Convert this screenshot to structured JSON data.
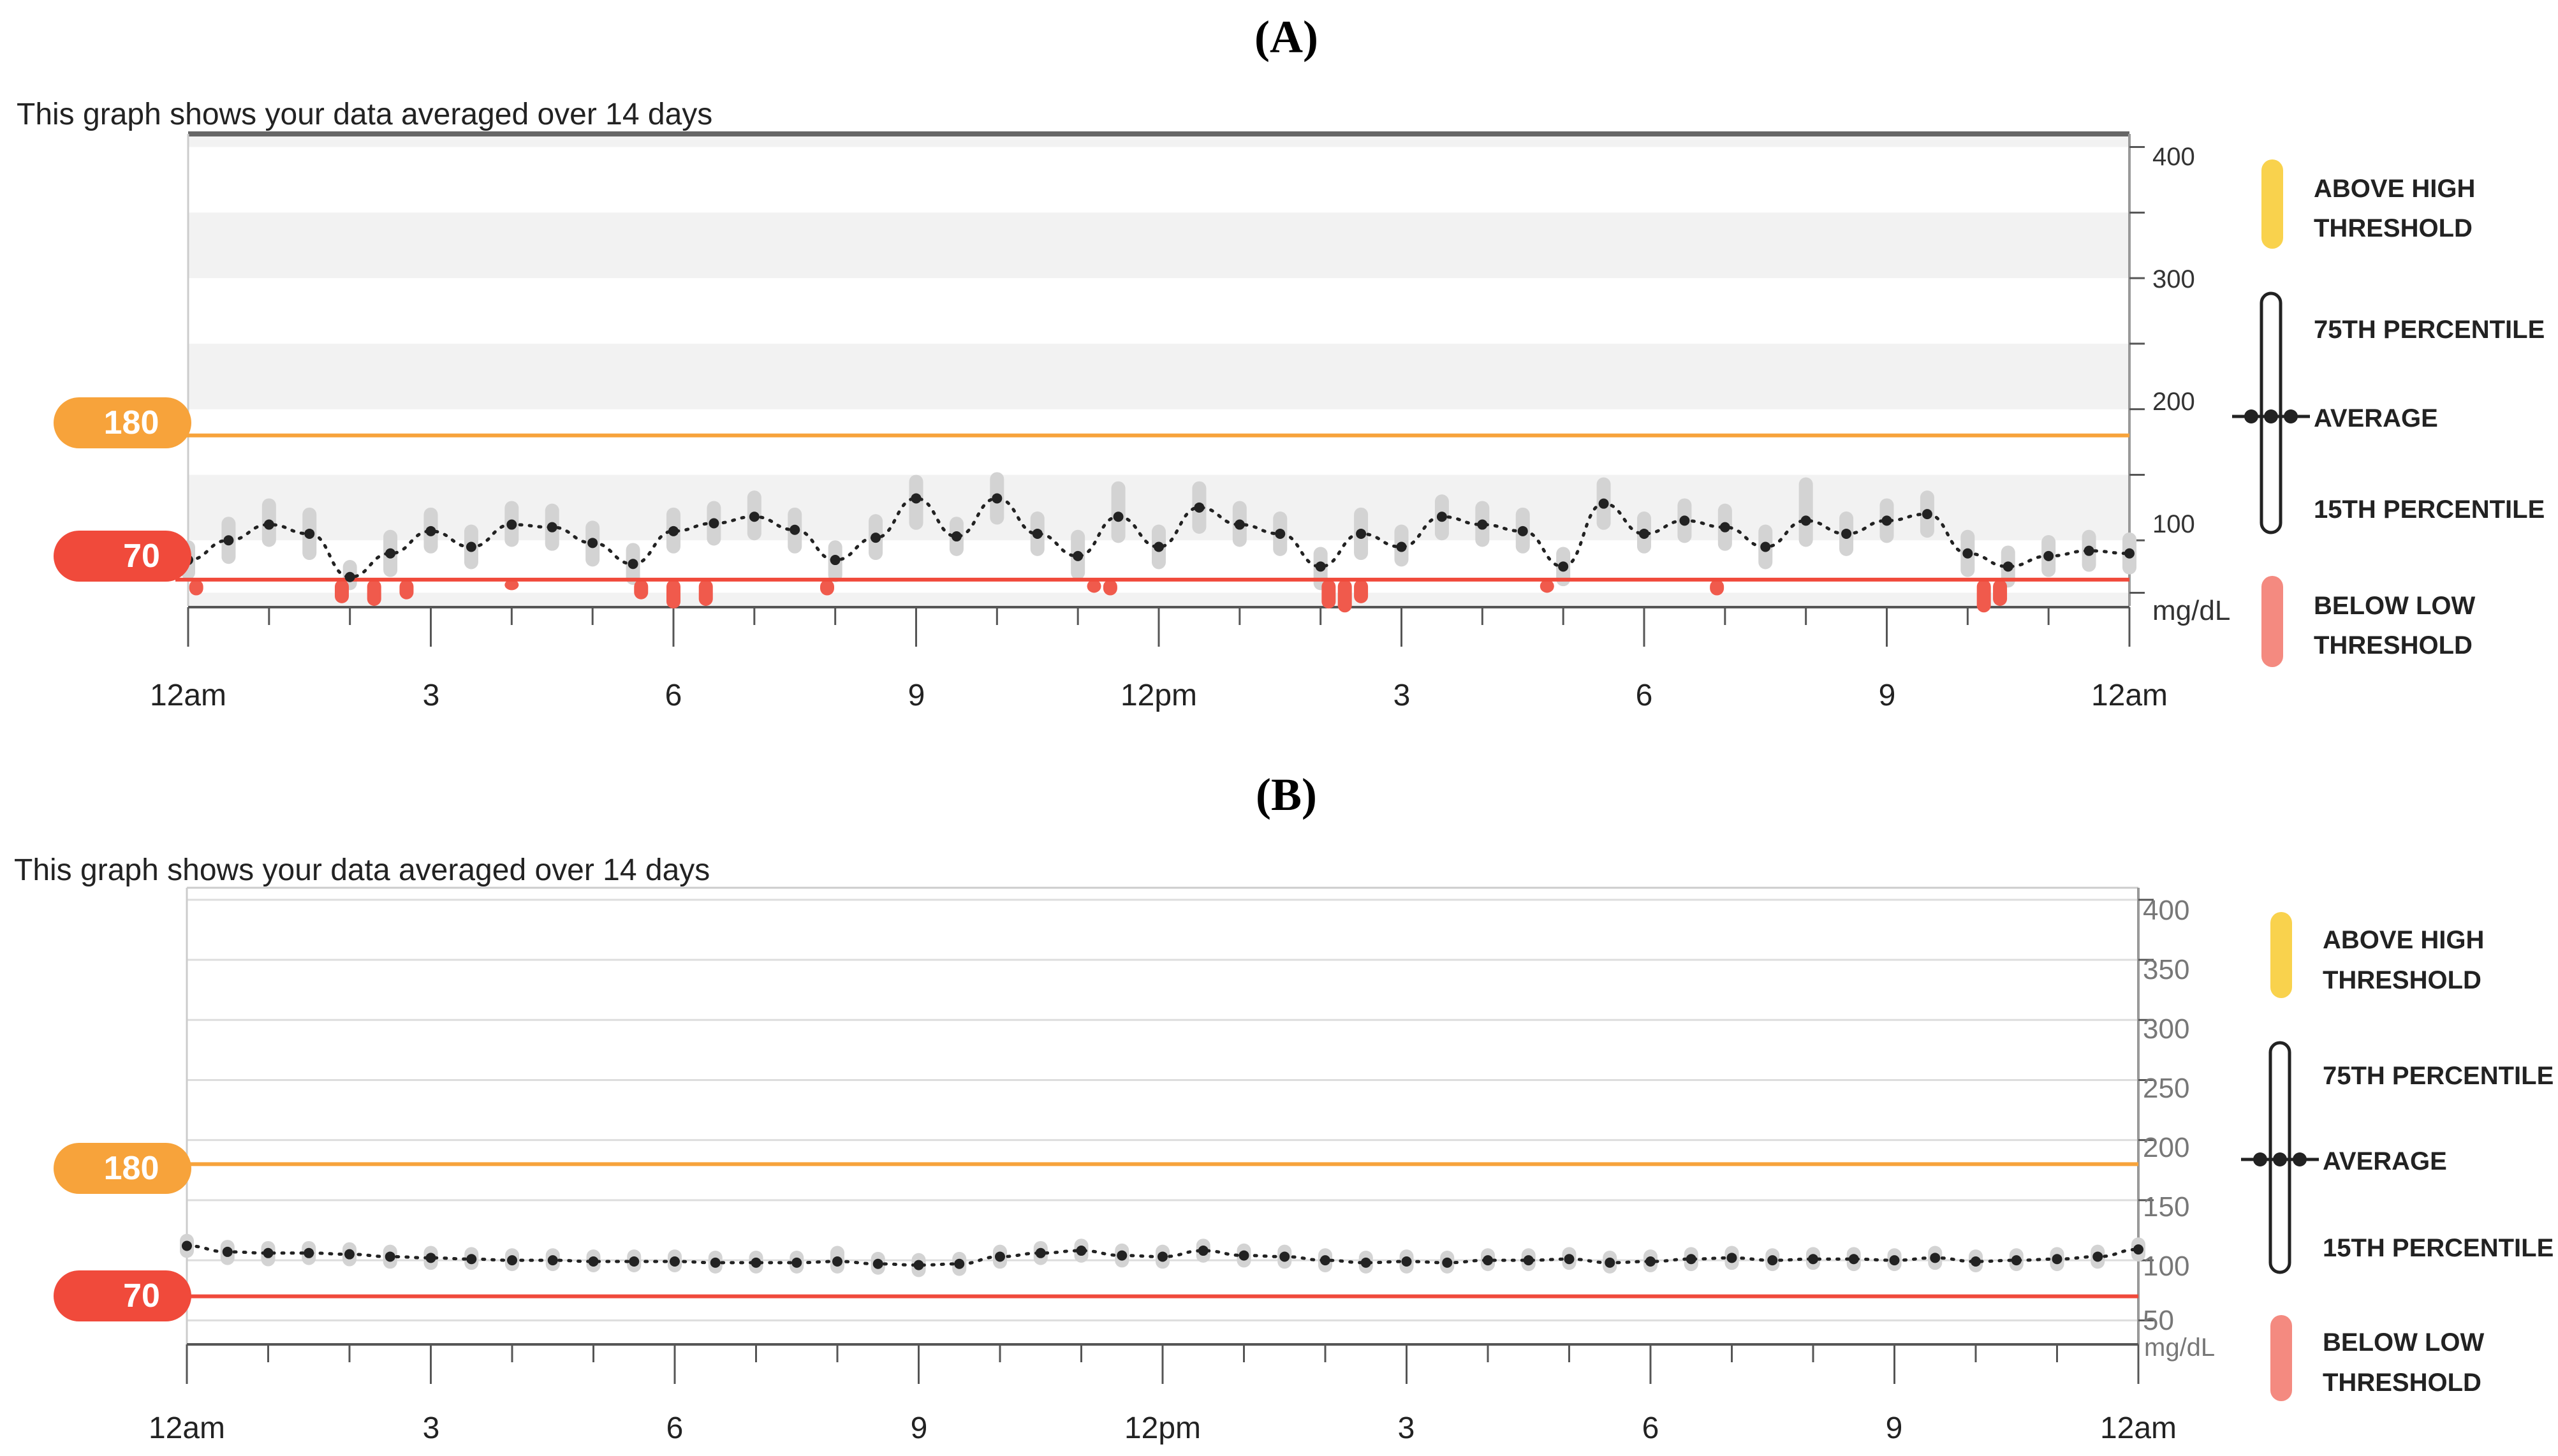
{
  "colors": {
    "high_line": "#f7a33b",
    "low_line": "#f04a3b",
    "above_high_legend": "#f9d24d",
    "below_low_legend": "#f48a80",
    "in_range_bar": "#d3d3d3",
    "below_low_bar": "#f05a4c",
    "average_line": "#222222",
    "band": "#f2f2f2",
    "grid": "#dddddd"
  },
  "icons": {
    "above_high": "yellow-bar-icon",
    "percentile": "percentile-range-icon",
    "average": "average-dots-icon",
    "below_low": "red-bar-icon"
  },
  "chart_data": [
    {
      "panel_label": "(A)",
      "type": "line",
      "title": "This graph shows your data averaged over 14 days",
      "unit": "mg/dL",
      "ylim": [
        50,
        410
      ],
      "y_ticks": [
        400,
        300,
        200,
        100
      ],
      "y_tick_labels": [
        "400",
        "300",
        "200",
        "100"
      ],
      "x_tick_labels": [
        "12am",
        "3",
        "6",
        "9",
        "12pm",
        "3",
        "6",
        "9",
        "12am"
      ],
      "x_range_hours": [
        0,
        24
      ],
      "high_threshold": 180,
      "high_threshold_label": "180",
      "low_threshold": 70,
      "low_threshold_label": "70",
      "legend": {
        "above_high": [
          "ABOVE HIGH",
          "THRESHOLD"
        ],
        "p75": "75TH PERCENTILE",
        "average": "AVERAGE",
        "p15": "15TH PERCENTILE",
        "below_low": [
          "BELOW LOW",
          "THRESHOLD"
        ]
      },
      "series": [
        {
          "name": "Average",
          "x_hours": [
            0.0,
            0.5,
            1.0,
            1.5,
            2.0,
            2.5,
            3.0,
            3.5,
            4.0,
            4.5,
            5.0,
            5.5,
            6.0,
            6.5,
            7.0,
            7.5,
            8.0,
            8.5,
            9.0,
            9.5,
            10.0,
            10.5,
            11.0,
            11.5,
            12.0,
            12.5,
            13.0,
            13.5,
            14.0,
            14.5,
            15.0,
            15.5,
            16.0,
            16.5,
            17.0,
            17.5,
            18.0,
            18.5,
            19.0,
            19.5,
            20.0,
            20.5,
            21.0,
            21.5,
            22.0,
            22.5,
            23.0,
            23.5,
            24.0
          ],
          "values": [
            85,
            100,
            112,
            105,
            72,
            90,
            107,
            95,
            112,
            110,
            98,
            82,
            107,
            113,
            118,
            108,
            85,
            102,
            132,
            103,
            132,
            105,
            88,
            118,
            95,
            125,
            112,
            105,
            80,
            105,
            95,
            118,
            112,
            107,
            80,
            128,
            105,
            115,
            110,
            95,
            115,
            105,
            115,
            120,
            90,
            80,
            88,
            92,
            90
          ]
        },
        {
          "name": "15th-75th percentile range",
          "x_hours": [
            0.0,
            0.5,
            1.0,
            1.5,
            2.0,
            2.5,
            3.0,
            3.5,
            4.0,
            4.5,
            5.0,
            5.5,
            6.0,
            6.5,
            7.0,
            7.5,
            8.0,
            8.5,
            9.0,
            9.5,
            10.0,
            10.5,
            11.0,
            11.5,
            12.0,
            12.5,
            13.0,
            13.5,
            14.0,
            14.5,
            15.0,
            15.5,
            16.0,
            16.5,
            17.0,
            17.5,
            18.0,
            18.5,
            19.0,
            19.5,
            20.0,
            20.5,
            21.0,
            21.5,
            22.0,
            22.5,
            23.0,
            23.5,
            24.0
          ],
          "p15": [
            70,
            82,
            95,
            85,
            62,
            72,
            90,
            78,
            95,
            92,
            80,
            66,
            90,
            96,
            100,
            90,
            68,
            85,
            108,
            88,
            112,
            88,
            70,
            98,
            78,
            105,
            95,
            88,
            62,
            85,
            80,
            100,
            95,
            90,
            65,
            108,
            90,
            98,
            92,
            78,
            95,
            88,
            98,
            102,
            72,
            64,
            72,
            76,
            74
          ],
          "p75": [
            100,
            118,
            132,
            125,
            85,
            108,
            125,
            112,
            130,
            128,
            115,
            98,
            125,
            130,
            138,
            125,
            100,
            120,
            150,
            118,
            152,
            122,
            108,
            145,
            112,
            145,
            130,
            122,
            95,
            125,
            112,
            135,
            130,
            125,
            95,
            148,
            122,
            132,
            128,
            112,
            148,
            122,
            132,
            138,
            108,
            96,
            104,
            108,
            106
          ]
        },
        {
          "name": "Below low threshold",
          "x_hours": [
            0.1,
            1.9,
            2.3,
            2.7,
            4.0,
            5.6,
            6.0,
            6.4,
            7.9,
            11.2,
            11.4,
            14.1,
            14.3,
            14.5,
            16.8,
            18.9,
            22.2,
            22.4
          ],
          "low": [
            58,
            52,
            50,
            55,
            62,
            55,
            48,
            50,
            58,
            60,
            58,
            48,
            45,
            52,
            60,
            58,
            45,
            50
          ]
        }
      ]
    },
    {
      "panel_label": "(B)",
      "type": "line",
      "title": "This graph shows your data averaged over 14 days",
      "unit": "mg/dL",
      "ylim": [
        30,
        410
      ],
      "y_ticks": [
        400,
        350,
        300,
        250,
        200,
        150,
        100,
        50
      ],
      "y_tick_labels": [
        "400",
        "350",
        "300",
        "250",
        "200",
        "150",
        "100",
        "50"
      ],
      "x_tick_labels": [
        "12am",
        "3",
        "6",
        "9",
        "12pm",
        "3",
        "6",
        "9",
        "12am"
      ],
      "x_range_hours": [
        0,
        24
      ],
      "high_threshold": 180,
      "high_threshold_label": "180",
      "low_threshold": 70,
      "low_threshold_label": "70",
      "legend": {
        "above_high": [
          "ABOVE HIGH",
          "THRESHOLD"
        ],
        "p75": "75TH PERCENTILE",
        "average": "AVERAGE",
        "p15": "15TH PERCENTILE",
        "below_low": [
          "BELOW LOW",
          "THRESHOLD"
        ]
      },
      "series": [
        {
          "name": "Average",
          "x_hours": [
            0.0,
            0.5,
            1.0,
            1.5,
            2.0,
            2.5,
            3.0,
            3.5,
            4.0,
            4.5,
            5.0,
            5.5,
            6.0,
            6.5,
            7.0,
            7.5,
            8.0,
            8.5,
            9.0,
            9.5,
            10.0,
            10.5,
            11.0,
            11.5,
            12.0,
            12.5,
            13.0,
            13.5,
            14.0,
            14.5,
            15.0,
            15.5,
            16.0,
            16.5,
            17.0,
            17.5,
            18.0,
            18.5,
            19.0,
            19.5,
            20.0,
            20.5,
            21.0,
            21.5,
            22.0,
            22.5,
            23.0,
            23.5,
            24.0
          ],
          "values": [
            112,
            107,
            106,
            106,
            105,
            103,
            102,
            101,
            100,
            100,
            99,
            99,
            99,
            98,
            98,
            98,
            99,
            97,
            96,
            97,
            103,
            106,
            108,
            104,
            103,
            108,
            104,
            103,
            100,
            98,
            99,
            98,
            100,
            100,
            101,
            98,
            99,
            101,
            102,
            100,
            101,
            101,
            100,
            102,
            99,
            100,
            101,
            103,
            109
          ]
        },
        {
          "name": "15th-75th percentile range",
          "x_hours": [
            0.0,
            0.5,
            1.0,
            1.5,
            2.0,
            2.5,
            3.0,
            3.5,
            4.0,
            4.5,
            5.0,
            5.5,
            6.0,
            6.5,
            7.0,
            7.5,
            8.0,
            8.5,
            9.0,
            9.5,
            10.0,
            10.5,
            11.0,
            11.5,
            12.0,
            12.5,
            13.0,
            13.5,
            14.0,
            14.5,
            15.0,
            15.5,
            16.0,
            16.5,
            17.0,
            17.5,
            18.0,
            18.5,
            19.0,
            19.5,
            20.0,
            20.5,
            21.0,
            21.5,
            22.0,
            22.5,
            23.0,
            23.5,
            24.0
          ],
          "p15": [
            102,
            96,
            95,
            96,
            95,
            93,
            92,
            92,
            91,
            91,
            90,
            90,
            90,
            89,
            89,
            89,
            89,
            88,
            86,
            87,
            93,
            96,
            98,
            94,
            93,
            98,
            94,
            93,
            90,
            89,
            89,
            89,
            91,
            91,
            92,
            89,
            90,
            91,
            92,
            91,
            92,
            91,
            91,
            92,
            90,
            91,
            91,
            93,
            99
          ],
          "p75": [
            122,
            117,
            116,
            116,
            115,
            113,
            112,
            111,
            110,
            110,
            109,
            109,
            109,
            108,
            108,
            108,
            112,
            107,
            106,
            107,
            113,
            116,
            118,
            114,
            113,
            118,
            114,
            113,
            110,
            108,
            109,
            108,
            110,
            110,
            111,
            108,
            109,
            111,
            112,
            110,
            111,
            111,
            110,
            112,
            109,
            110,
            111,
            113,
            119
          ]
        }
      ]
    }
  ]
}
